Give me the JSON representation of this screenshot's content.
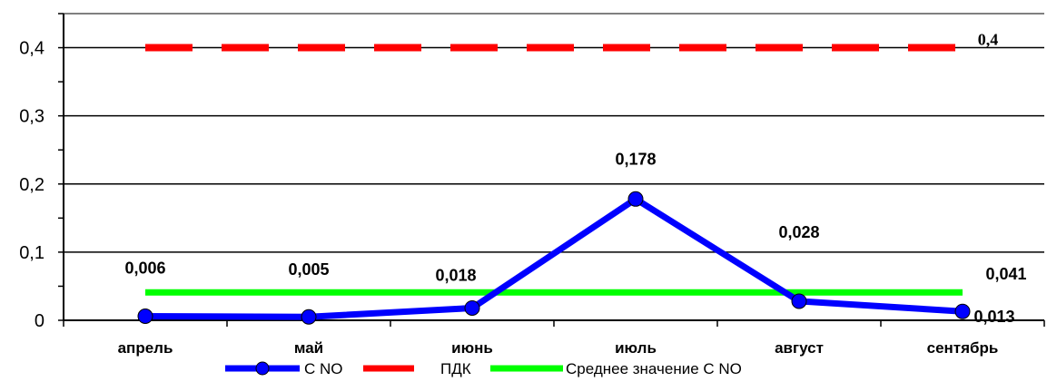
{
  "chart_data": {
    "type": "line",
    "categories": [
      "апрель",
      "май",
      "июнь",
      "июль",
      "август",
      "сентябрь"
    ],
    "ylim": [
      0,
      0.45
    ],
    "yticks": [
      {
        "value": 0,
        "label": "0"
      },
      {
        "value": 0.1,
        "label": "0,1"
      },
      {
        "value": 0.2,
        "label": "0,2"
      },
      {
        "value": 0.3,
        "label": "0,3"
      },
      {
        "value": 0.4,
        "label": "0,4"
      }
    ],
    "grid": true,
    "legend_position": "bottom",
    "series": [
      {
        "name": "С NO",
        "color": "#0000ff",
        "marker": "circle",
        "values": [
          0.006,
          0.005,
          0.018,
          0.178,
          0.028,
          0.013
        ],
        "labels": [
          "0,006",
          "0,005",
          "0,018",
          "0,178",
          "0,028",
          "0,013"
        ]
      },
      {
        "name": "ПДК",
        "color": "#ff0000",
        "style": "dashed",
        "value": 0.4,
        "label": "0,4"
      },
      {
        "name": "Среднее значение С NO",
        "color": "#00ff00",
        "value": 0.041,
        "label": "0,041"
      }
    ]
  }
}
